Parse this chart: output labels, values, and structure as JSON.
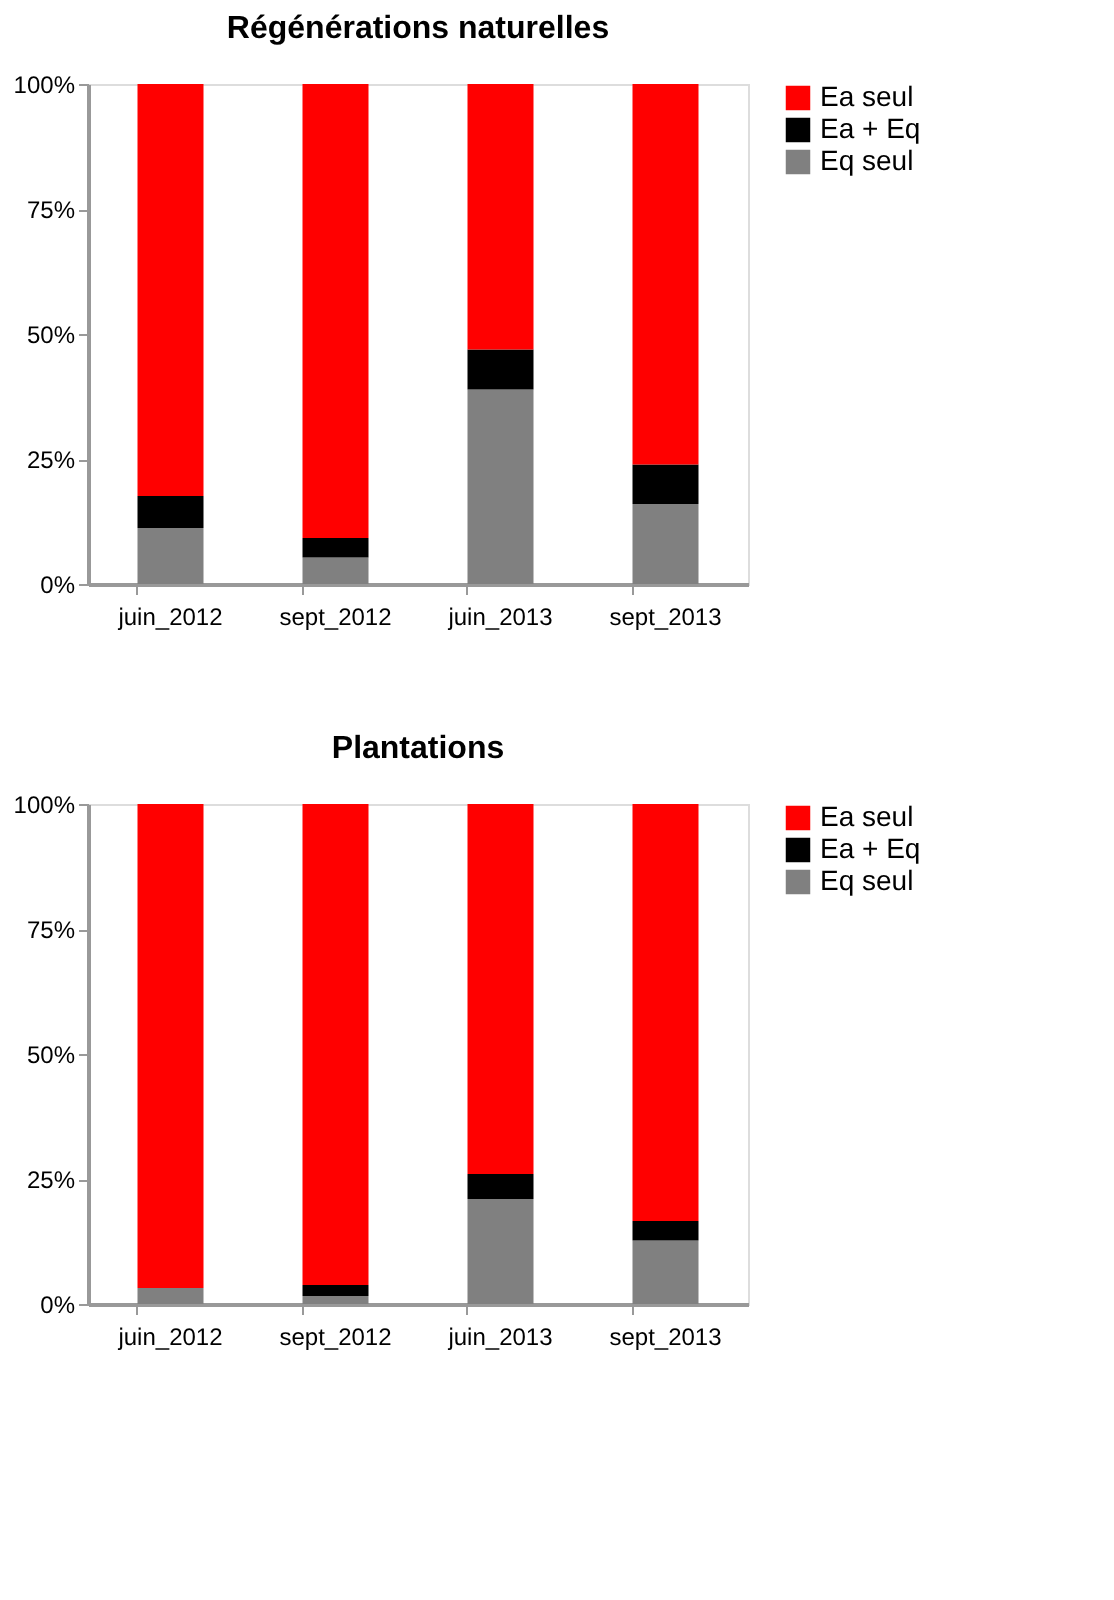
{
  "chart_data": [
    {
      "type": "bar",
      "title": "Régénérations naturelles",
      "stacked": true,
      "legend": "right",
      "grid": false,
      "categories": [
        "juin_2012",
        "sept_2012",
        "juin_2013",
        "sept_2013"
      ],
      "ylim": [
        0,
        100
      ],
      "yticks": [
        {
          "value": 0,
          "label": "0%"
        },
        {
          "value": 25,
          "label": "25%"
        },
        {
          "value": 50,
          "label": "50%"
        },
        {
          "value": 75,
          "label": "75%"
        },
        {
          "value": 100,
          "label": "100%"
        }
      ],
      "series": [
        {
          "name": "Eq seul",
          "color": "#808080",
          "values": [
            11.2,
            5.3,
            38.9,
            16.0
          ]
        },
        {
          "name": "Ea + Eq",
          "color": "#000000",
          "values": [
            6.4,
            3.9,
            8.0,
            7.9
          ]
        },
        {
          "name": "Ea seul",
          "color": "#ff0000",
          "values": [
            82.4,
            90.8,
            53.1,
            76.1
          ]
        }
      ]
    },
    {
      "type": "bar",
      "title": "Plantations",
      "stacked": true,
      "legend": "right",
      "grid": false,
      "categories": [
        "juin_2012",
        "sept_2012",
        "juin_2013",
        "sept_2013"
      ],
      "ylim": [
        0,
        100
      ],
      "yticks": [
        {
          "value": 0,
          "label": "0%"
        },
        {
          "value": 25,
          "label": "25%"
        },
        {
          "value": 50,
          "label": "50%"
        },
        {
          "value": 75,
          "label": "75%"
        },
        {
          "value": 100,
          "label": "100%"
        }
      ],
      "series": [
        {
          "name": "Eq seul",
          "color": "#808080",
          "values": [
            3.2,
            1.6,
            21.0,
            12.7
          ]
        },
        {
          "name": "Ea + Eq",
          "color": "#000000",
          "values": [
            0,
            2.2,
            5.0,
            3.9
          ]
        },
        {
          "name": "Ea seul",
          "color": "#ff0000",
          "values": [
            96.8,
            96.2,
            74.0,
            83.4
          ]
        }
      ]
    }
  ]
}
